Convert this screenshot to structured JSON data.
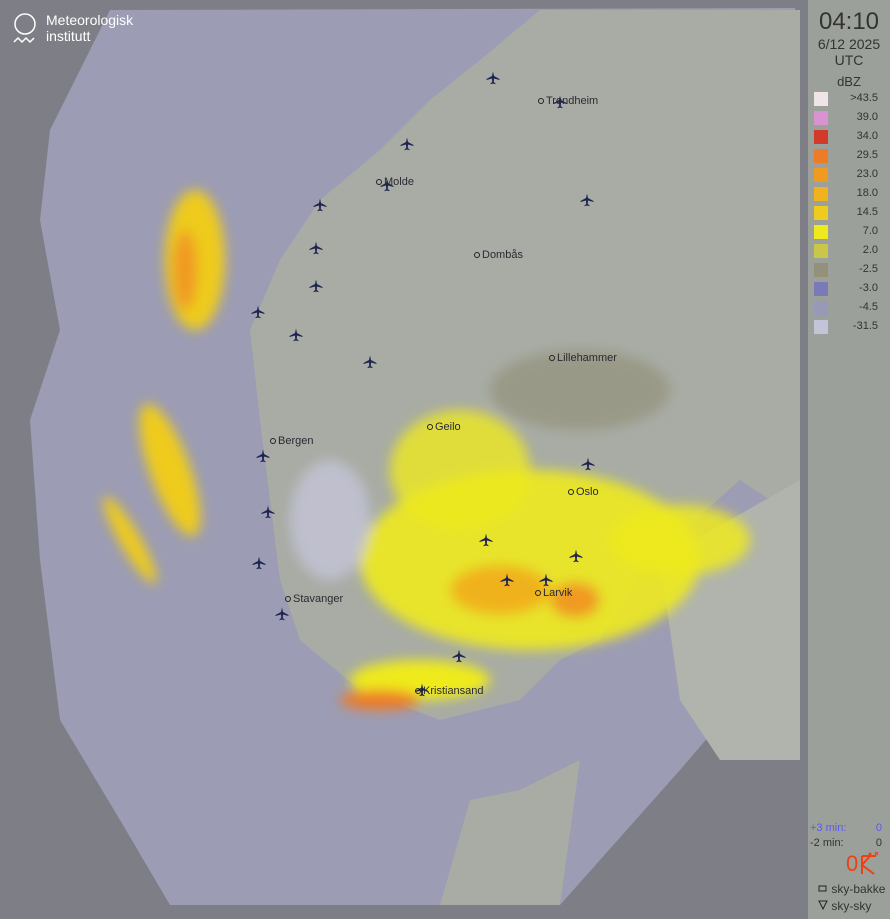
{
  "logo": {
    "line1": "Meteorologisk",
    "line2": "institutt"
  },
  "panel": {
    "time": "04:10",
    "date": "6/12 2025",
    "tz": "UTC",
    "unit": "dBZ",
    "legend": [
      {
        "label": ">43.5",
        "color": "#efe5e8"
      },
      {
        "label": "39.0",
        "color": "#d993d0"
      },
      {
        "label": "34.0",
        "color": "#d23a2a"
      },
      {
        "label": "29.5",
        "color": "#ee7b26"
      },
      {
        "label": "23.0",
        "color": "#f09a22"
      },
      {
        "label": "18.0",
        "color": "#f0b21e"
      },
      {
        "label": "14.5",
        "color": "#eecb1c"
      },
      {
        "label": "7.0",
        "color": "#eeea1e"
      },
      {
        "label": "2.0",
        "color": "#c9c64a"
      },
      {
        "label": "-2.5",
        "color": "#93917a"
      },
      {
        "label": "-3.0",
        "color": "#7a7ab8"
      },
      {
        "label": "-4.5",
        "color": "#9898b8"
      },
      {
        "label": "-31.5",
        "color": "#c4c4d8"
      }
    ],
    "forecast": [
      {
        "label": "+3 min:",
        "value": "0",
        "color": "#5a5af0"
      },
      {
        "label": "-2 min:",
        "value": "0",
        "color": "#333333"
      }
    ],
    "lightning_count": "0",
    "lightning_color": "#f04010",
    "symbols": [
      {
        "icon": "square-icon",
        "label": "sky-bakke"
      },
      {
        "icon": "triangle-down-icon",
        "label": "sky-sky"
      }
    ]
  },
  "cities": [
    "Trondheim",
    "Molde",
    "Dombås",
    "Lillehammer",
    "Geilo",
    "Bergen",
    "Oslo",
    "Larvik",
    "Stavanger",
    "Kristiansand"
  ]
}
